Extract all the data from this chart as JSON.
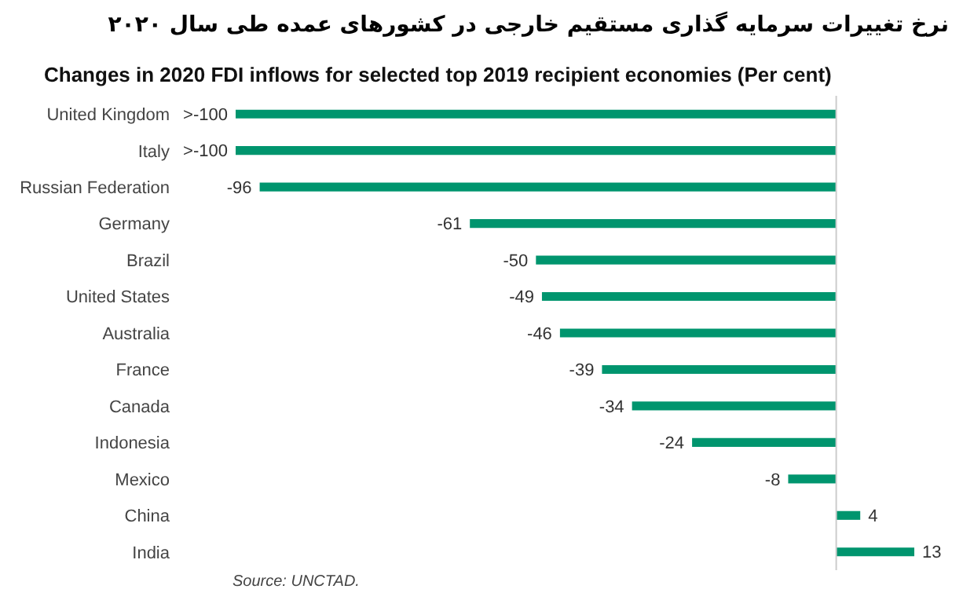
{
  "chart_data": {
    "type": "bar",
    "orientation": "horizontal",
    "title": "نرخ تغییرات سرمایه گذاری مستقیم خارجی در کشورهای عمده طی سال ۲۰۲۰",
    "subtitle": "Changes in 2020 FDI inflows for selected top 2019 recipient economies (Per cent)",
    "categories": [
      "United Kingdom",
      "Italy",
      "Russian Federation",
      "Germany",
      "Brazil",
      "United States",
      "Australia",
      "France",
      "Canada",
      "Indonesia",
      "Mexico",
      "China",
      "India"
    ],
    "values": [
      -100,
      -100,
      -96,
      -61,
      -50,
      -49,
      -46,
      -39,
      -34,
      -24,
      -8,
      4,
      13
    ],
    "value_labels": [
      ">-100",
      ">-100",
      "-96",
      "-61",
      "-50",
      "-49",
      "-46",
      "-39",
      "-34",
      "-24",
      "-8",
      "4",
      "13"
    ],
    "color": "#00956e",
    "annotations": [
      "Source: UNCTAD."
    ]
  }
}
